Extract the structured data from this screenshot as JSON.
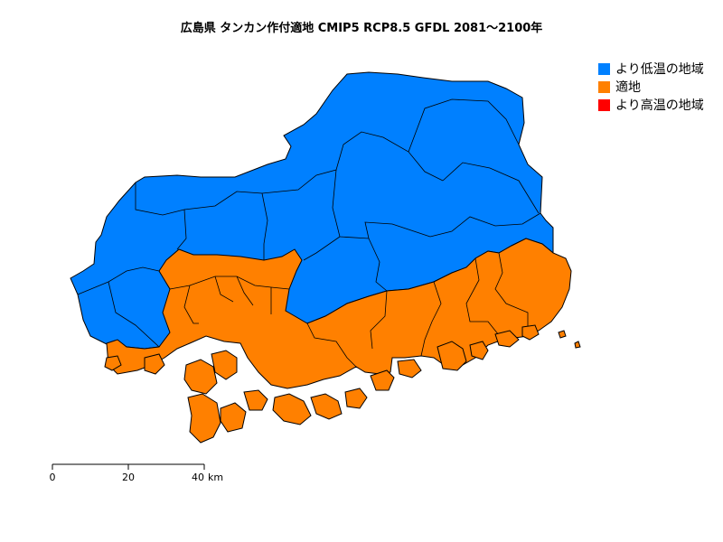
{
  "title": "広島県 タンカン作付適地 CMIP5 RCP8.5 GFDL 2081〜2100年",
  "legend": [
    {
      "label": "より低温の地域",
      "color": "#0080FF"
    },
    {
      "label": "適地",
      "color": "#FF8000"
    },
    {
      "label": "より高温の地域",
      "color": "#FF0000"
    }
  ],
  "scale_bar": {
    "ticks": [
      "0",
      "20",
      "40"
    ],
    "unit": "km"
  }
}
